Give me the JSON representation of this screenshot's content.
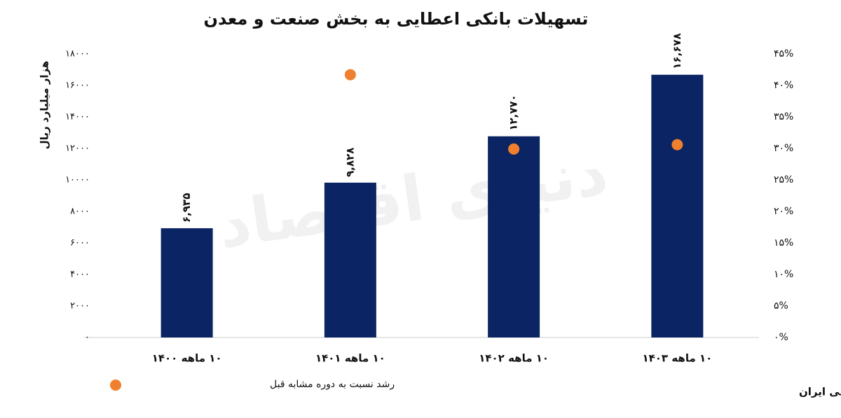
{
  "chart_data": {
    "type": "bar",
    "title": "تسهیلات بانکی اعطایی به بخش صنعت و معدن",
    "y_label": "هزار میلیارد ریال",
    "watermark": "دنیای اقتصاد",
    "source": "منبع: بانک مرکزی جمهوری اسلامی ایران",
    "categories": [
      "۱۰ ماهه ۱۴۰۰",
      "۱۰ ماهه ۱۴۰۱",
      "۱۰ ماهه ۱۴۰۲",
      "۱۰ ماهه ۱۴۰۳"
    ],
    "series": [
      {
        "color": "#0b2463",
        "values": [
          6935,
          9828,
          12770,
          16678
        ],
        "value_labels": [
          "۶,۹۳۵",
          "۹,۸۲۸",
          "۱۲,۷۷۰",
          "۱۶,۶۷۸"
        ]
      },
      {
        "name": "رشد نسبت به دوره مشابه قبل",
        "color": "#f0802e",
        "axis": "y2",
        "values": [
          null,
          41.7,
          29.9,
          30.6
        ]
      }
    ],
    "ylim": [
      0,
      18000
    ],
    "yticks": [
      {
        "value": 0,
        "label": "۰"
      },
      {
        "value": 2000,
        "label": "۲۰۰۰"
      },
      {
        "value": 4000,
        "label": "۴۰۰۰"
      },
      {
        "value": 6000,
        "label": "۶۰۰۰"
      },
      {
        "value": 8000,
        "label": "۸۰۰۰"
      },
      {
        "value": 10000,
        "label": "۱۰۰۰۰"
      },
      {
        "value": 12000,
        "label": "۱۲۰۰۰"
      },
      {
        "value": 14000,
        "label": "۱۴۰۰۰"
      },
      {
        "value": 16000,
        "label": "۱۶۰۰۰"
      },
      {
        "value": 18000,
        "label": "۱۸۰۰۰"
      }
    ],
    "y2lim": [
      0,
      45
    ],
    "y2ticks": [
      {
        "value": 0,
        "label": "۰%"
      },
      {
        "value": 5,
        "label": "۵%"
      },
      {
        "value": 10,
        "label": "۱۰%"
      },
      {
        "value": 15,
        "label": "۱۵%"
      },
      {
        "value": 20,
        "label": "۲۰%"
      },
      {
        "value": 25,
        "label": "۲۵%"
      },
      {
        "value": 30,
        "label": "۳۰%"
      },
      {
        "value": 35,
        "label": "۳۵%"
      },
      {
        "value": 40,
        "label": "۴۰%"
      },
      {
        "value": 45,
        "label": "۴۵%"
      }
    ],
    "grid": false
  }
}
